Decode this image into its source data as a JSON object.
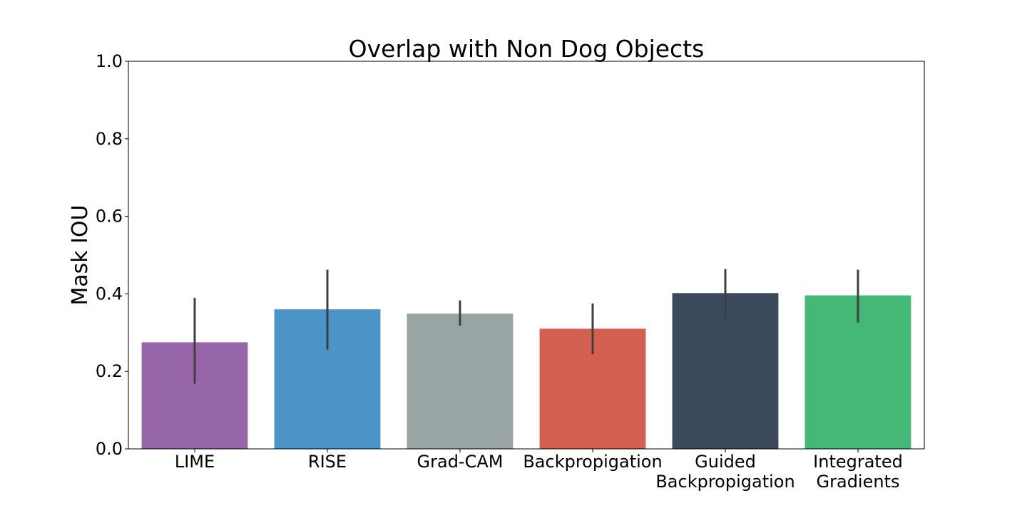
{
  "chart_data": {
    "type": "bar",
    "title": "Overlap with Non Dog Objects",
    "xlabel": "",
    "ylabel": "Mask IOU",
    "ylim": [
      0,
      1.0
    ],
    "yticks": [
      "0.0",
      "0.2",
      "0.4",
      "0.6",
      "0.8",
      "1.0"
    ],
    "categories": [
      [
        "LIME"
      ],
      [
        "RISE"
      ],
      [
        "Grad-CAM"
      ],
      [
        "Backpropigation"
      ],
      [
        "Guided",
        "Backpropigation"
      ],
      [
        "Integrated",
        "Gradients"
      ]
    ],
    "values": [
      0.275,
      0.36,
      0.349,
      0.31,
      0.402,
      0.396
    ],
    "error_low": [
      0.168,
      0.256,
      0.318,
      0.244,
      0.336,
      0.326
    ],
    "error_high": [
      0.39,
      0.462,
      0.383,
      0.375,
      0.464,
      0.462
    ],
    "colors": [
      "#9766a9",
      "#4a94c7",
      "#99a4a5",
      "#d35f50",
      "#3a4a5c",
      "#44b874"
    ],
    "error_color": "#3f3f3f",
    "grid": false,
    "legend": "none"
  }
}
